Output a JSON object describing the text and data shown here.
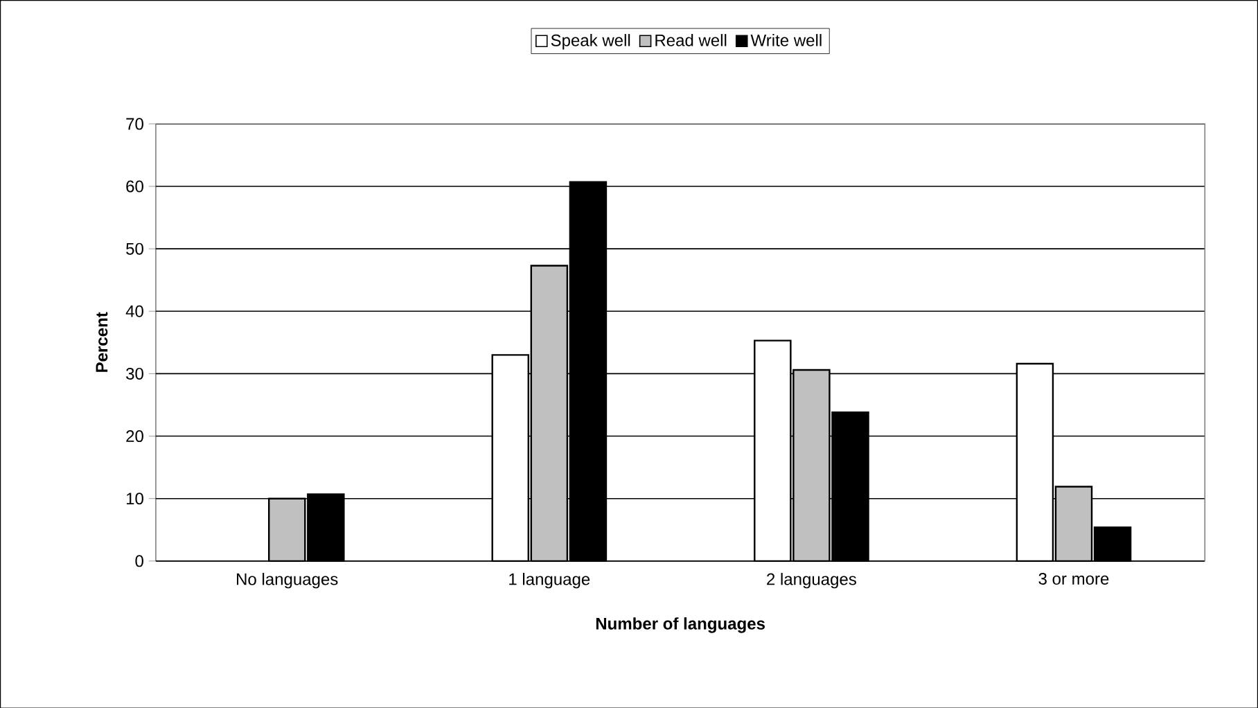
{
  "chart_data": {
    "type": "bar",
    "xlabel": "Number of languages",
    "ylabel": "Percent",
    "categories": [
      "No languages",
      "1 language",
      "2 languages",
      "3 or more"
    ],
    "series": [
      {
        "name": "Speak well",
        "color": "#ffffff",
        "values": [
          null,
          33.0,
          35.3,
          31.6
        ]
      },
      {
        "name": "Read well",
        "color": "#c0c0c0",
        "values": [
          10.0,
          47.3,
          30.6,
          11.9
        ]
      },
      {
        "name": "Write well",
        "color": "#000000",
        "values": [
          10.7,
          60.7,
          23.8,
          5.4
        ]
      }
    ],
    "ylim": [
      0,
      70
    ],
    "yticks": [
      0,
      10,
      20,
      30,
      40,
      50,
      60,
      70
    ],
    "grid": "y",
    "legend": "top"
  }
}
